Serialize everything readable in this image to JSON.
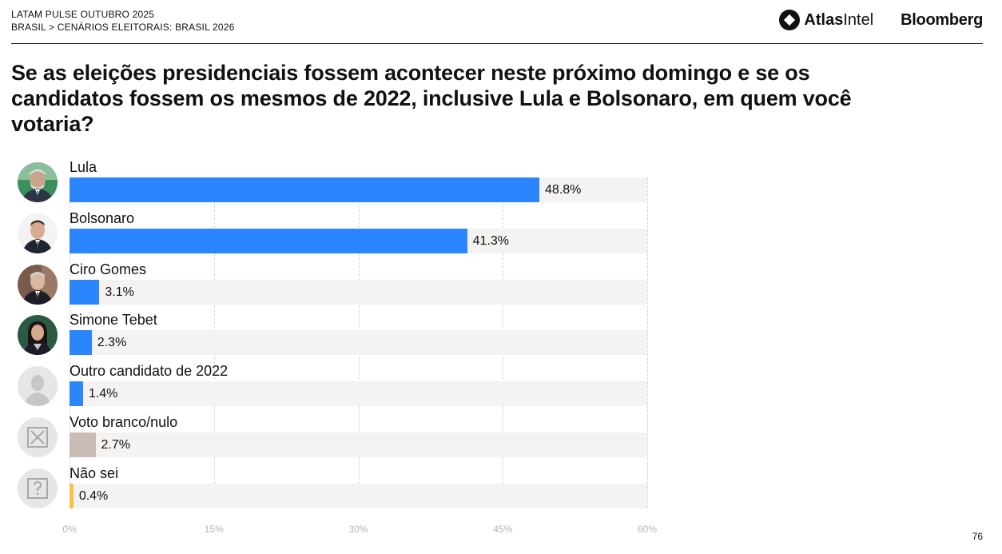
{
  "header": {
    "line1": "LATAM PULSE OUTUBRO 2025",
    "line2": "BRASIL > CENÁRIOS ELEITORAIS: BRASIL 2026",
    "logo_atlas_bold": "Atlas",
    "logo_atlas_rest": "Intel",
    "logo_bloomberg": "Bloomberg"
  },
  "question": "Se as eleições presidenciais fossem acontecer neste próximo domingo e se os candidatos fossem os mesmos de 2022, inclusive Lula e Bolsonaro, em quem você votaria?",
  "page_number": "76",
  "colors": {
    "candidate": "#2a85ff",
    "blank_null": "#c8bcb4",
    "dont_know": "#f5c343",
    "track": "#f4f3f2"
  },
  "chart_data": {
    "type": "bar",
    "orientation": "horizontal",
    "categories": [
      "Lula",
      "Bolsonaro",
      "Ciro Gomes",
      "Simone Tebet",
      "Outro candidato de 2022",
      "Voto branco/nulo",
      "Não sei"
    ],
    "values": [
      48.8,
      41.3,
      3.1,
      2.3,
      1.4,
      2.7,
      0.4
    ],
    "value_labels": [
      "48.8%",
      "41.3%",
      "3.1%",
      "2.3%",
      "1.4%",
      "2.7%",
      "0.4%"
    ],
    "bar_colors": [
      "#2a85ff",
      "#2a85ff",
      "#2a85ff",
      "#2a85ff",
      "#2a85ff",
      "#c8bcb4",
      "#f5c343"
    ],
    "avatar_icons": [
      "photo-lula-icon",
      "photo-bolsonaro-icon",
      "photo-ciro-gomes-icon",
      "photo-simone-tebet-icon",
      "person-silhouette-icon",
      "x-box-icon",
      "question-box-icon"
    ],
    "xlim": [
      0,
      60
    ],
    "xticks": [
      0,
      15,
      30,
      45,
      60
    ],
    "xtick_labels": [
      "0%",
      "15%",
      "30%",
      "45%",
      "60%"
    ],
    "grid": true,
    "xlabel": "",
    "ylabel": ""
  }
}
